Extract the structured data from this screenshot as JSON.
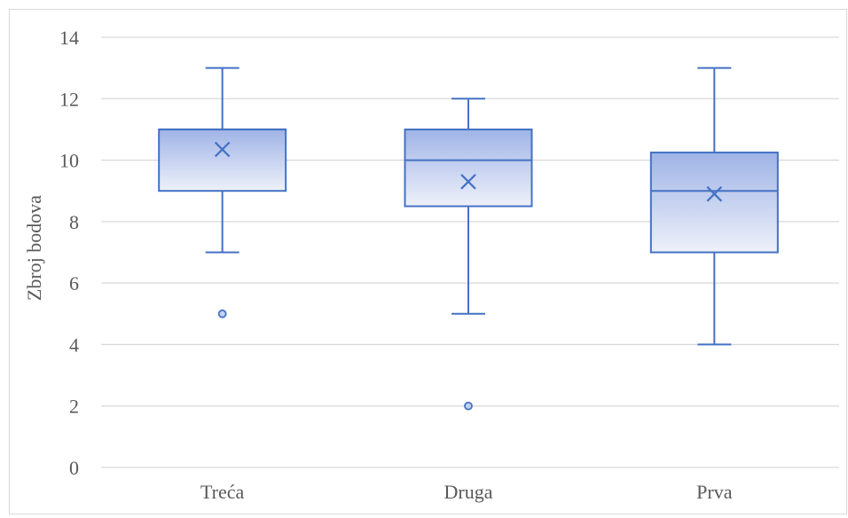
{
  "chart_data": {
    "type": "box",
    "title": "",
    "xlabel": "",
    "ylabel": "Zbroj bodova",
    "ylim": [
      0,
      14
    ],
    "yticks": [
      "0",
      "2",
      "4",
      "6",
      "8",
      "10",
      "12",
      "14"
    ],
    "grid": true,
    "categories": [
      "Treća",
      "Druga",
      "Prva"
    ],
    "boxes": [
      {
        "category": "Treća",
        "whisker_low": 7,
        "q1": 9,
        "median": 11,
        "q3": 11,
        "whisker_high": 13,
        "mean": 10.35,
        "outliers": [
          5
        ]
      },
      {
        "category": "Druga",
        "whisker_low": 5,
        "q1": 8.5,
        "median": 10,
        "q3": 11,
        "whisker_high": 12,
        "mean": 9.3,
        "outliers": [
          2
        ]
      },
      {
        "category": "Prva",
        "whisker_low": 4,
        "q1": 7,
        "median": 9,
        "q3": 10.25,
        "whisker_high": 13,
        "mean": 8.9,
        "outliers": []
      }
    ],
    "colors": {
      "box_stroke": "#4472c4",
      "box_fill_top": "#9fb3e6",
      "box_fill_bottom": "#eef1fa",
      "grid": "#d9d9d9"
    }
  }
}
